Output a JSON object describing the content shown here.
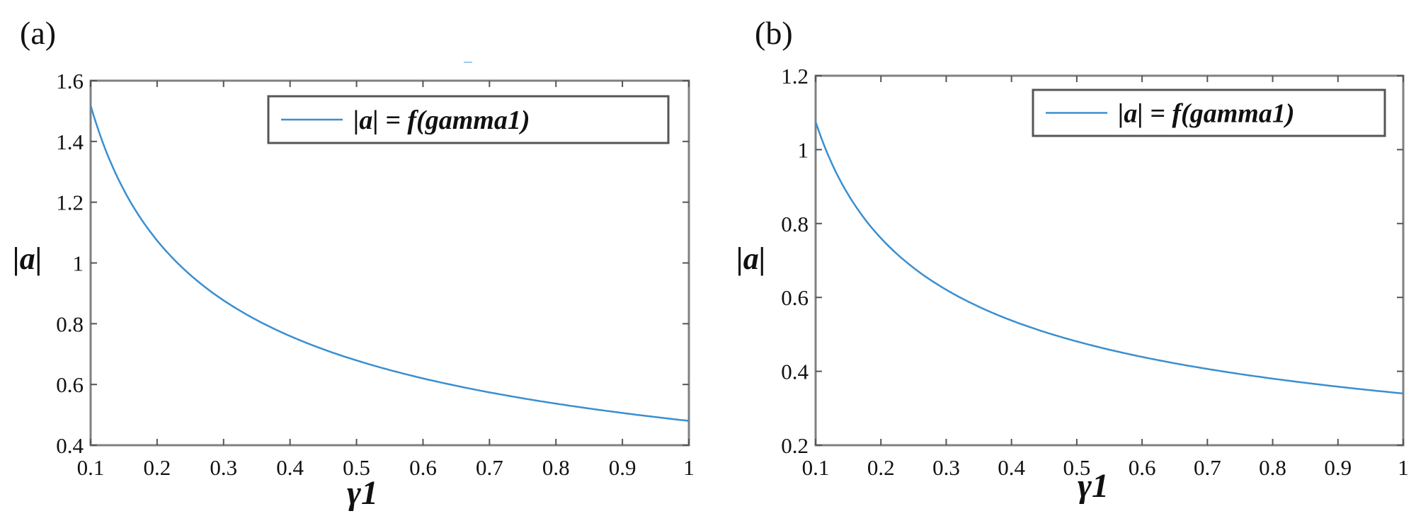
{
  "chart_data": [
    {
      "type": "line",
      "panel_label": "(a)",
      "xlabel": "γ1",
      "ylabel": "|a|",
      "xlim": [
        0.1,
        1
      ],
      "ylim": [
        0.4,
        1.6
      ],
      "xticks": [
        "0.1",
        "0.2",
        "0.3",
        "0.4",
        "0.5",
        "0.6",
        "0.7",
        "0.8",
        "0.9",
        "1"
      ],
      "yticks": [
        "0.4",
        "0.6",
        "0.8",
        "1",
        "1.2",
        "1.4",
        "1.6"
      ],
      "legend": {
        "label": "|a| = f(gamma1)",
        "placement": "top-right"
      },
      "grid": false,
      "series": [
        {
          "name": "|a| = f(gamma1)",
          "color": "#3a8fd0",
          "x": [
            0.1,
            0.15,
            0.2,
            0.25,
            0.3,
            0.35,
            0.4,
            0.45,
            0.5,
            0.55,
            0.6,
            0.65,
            0.7,
            0.75,
            0.8,
            0.85,
            0.9,
            0.95,
            1.0
          ],
          "y": [
            1.51,
            1.24,
            1.07,
            0.96,
            0.88,
            0.81,
            0.76,
            0.72,
            0.68,
            0.65,
            0.62,
            0.6,
            0.575,
            0.555,
            0.535,
            0.52,
            0.505,
            0.49,
            0.48
          ]
        }
      ]
    },
    {
      "type": "line",
      "panel_label": "(b)",
      "xlabel": "γ1",
      "ylabel": "|a|",
      "xlim": [
        0.1,
        1
      ],
      "ylim": [
        0.2,
        1.2
      ],
      "xticks": [
        "0.1",
        "0.2",
        "0.3",
        "0.4",
        "0.5",
        "0.6",
        "0.7",
        "0.8",
        "0.9",
        "1"
      ],
      "yticks": [
        "0.2",
        "0.4",
        "0.6",
        "0.8",
        "1",
        "1.2"
      ],
      "legend": {
        "label": "|a| = f(gamma1)",
        "placement": "top-right"
      },
      "grid": false,
      "series": [
        {
          "name": "|a| = f(gamma1)",
          "color": "#3a8fd0",
          "x": [
            0.1,
            0.15,
            0.2,
            0.25,
            0.3,
            0.35,
            0.4,
            0.45,
            0.5,
            0.55,
            0.6,
            0.65,
            0.7,
            0.75,
            0.8,
            0.85,
            0.9,
            0.95,
            1.0
          ],
          "y": [
            1.075,
            0.88,
            0.76,
            0.68,
            0.62,
            0.575,
            0.54,
            0.505,
            0.48,
            0.46,
            0.44,
            0.42,
            0.405,
            0.39,
            0.38,
            0.37,
            0.36,
            0.35,
            0.34
          ]
        }
      ]
    }
  ]
}
